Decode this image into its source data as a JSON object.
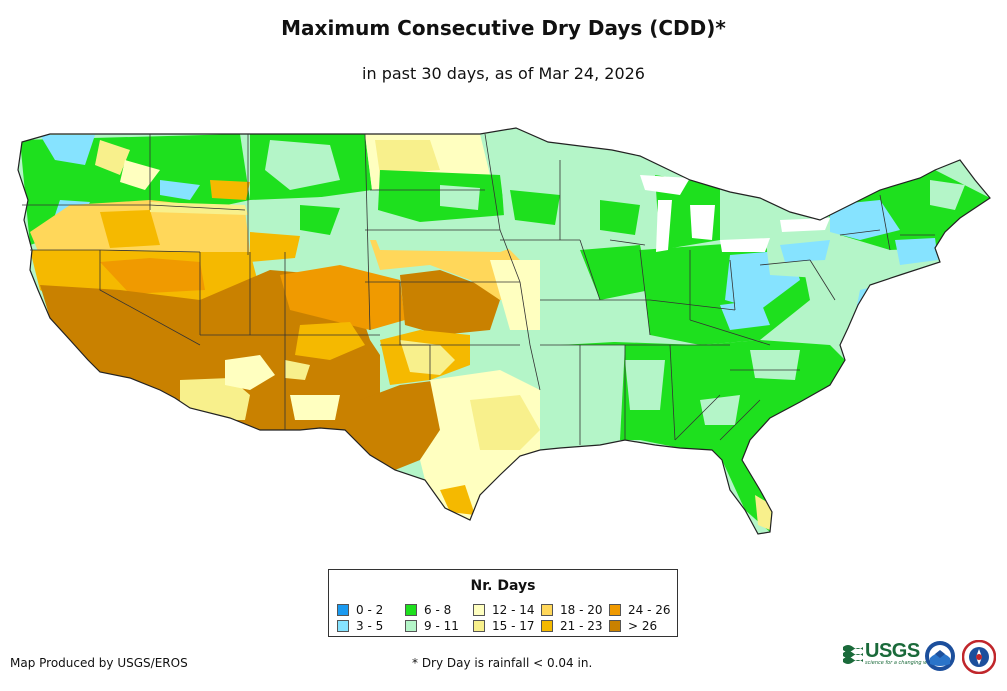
{
  "title": "Maximum Consecutive Dry Days (CDD)*",
  "subtitle": "in past 30 days, as of Mar 24, 2026",
  "legend": {
    "title": "Nr. Days",
    "classes": [
      {
        "label": "0 - 2",
        "color": "#1a9af0"
      },
      {
        "label": "6 - 8",
        "color": "#1ee01e"
      },
      {
        "label": "12 - 14",
        "color": "#ffffc0"
      },
      {
        "label": "18 - 20",
        "color": "#ffd75a"
      },
      {
        "label": "3 - 5",
        "color": "#86e3ff"
      },
      {
        "label": "9 - 11",
        "color": "#b4f5c8"
      },
      {
        "label": "15 - 17",
        "color": "#f8f08c"
      },
      {
        "label": "21 - 23",
        "color": "#f5b900"
      },
      {
        "label": "24 - 26",
        "color": "#f09a00"
      },
      {
        "label": "> 26",
        "color": "#c98100"
      }
    ]
  },
  "footer": {
    "producer": "Map Produced by USGS/EROS",
    "footnote": "* Dry Day is rainfall < 0.04 in.",
    "usgs_logo_text": "USGS",
    "usgs_tagline": "science for a changing world"
  },
  "logos": [
    "usgs-logo",
    "noaa-logo",
    "nws-logo"
  ]
}
